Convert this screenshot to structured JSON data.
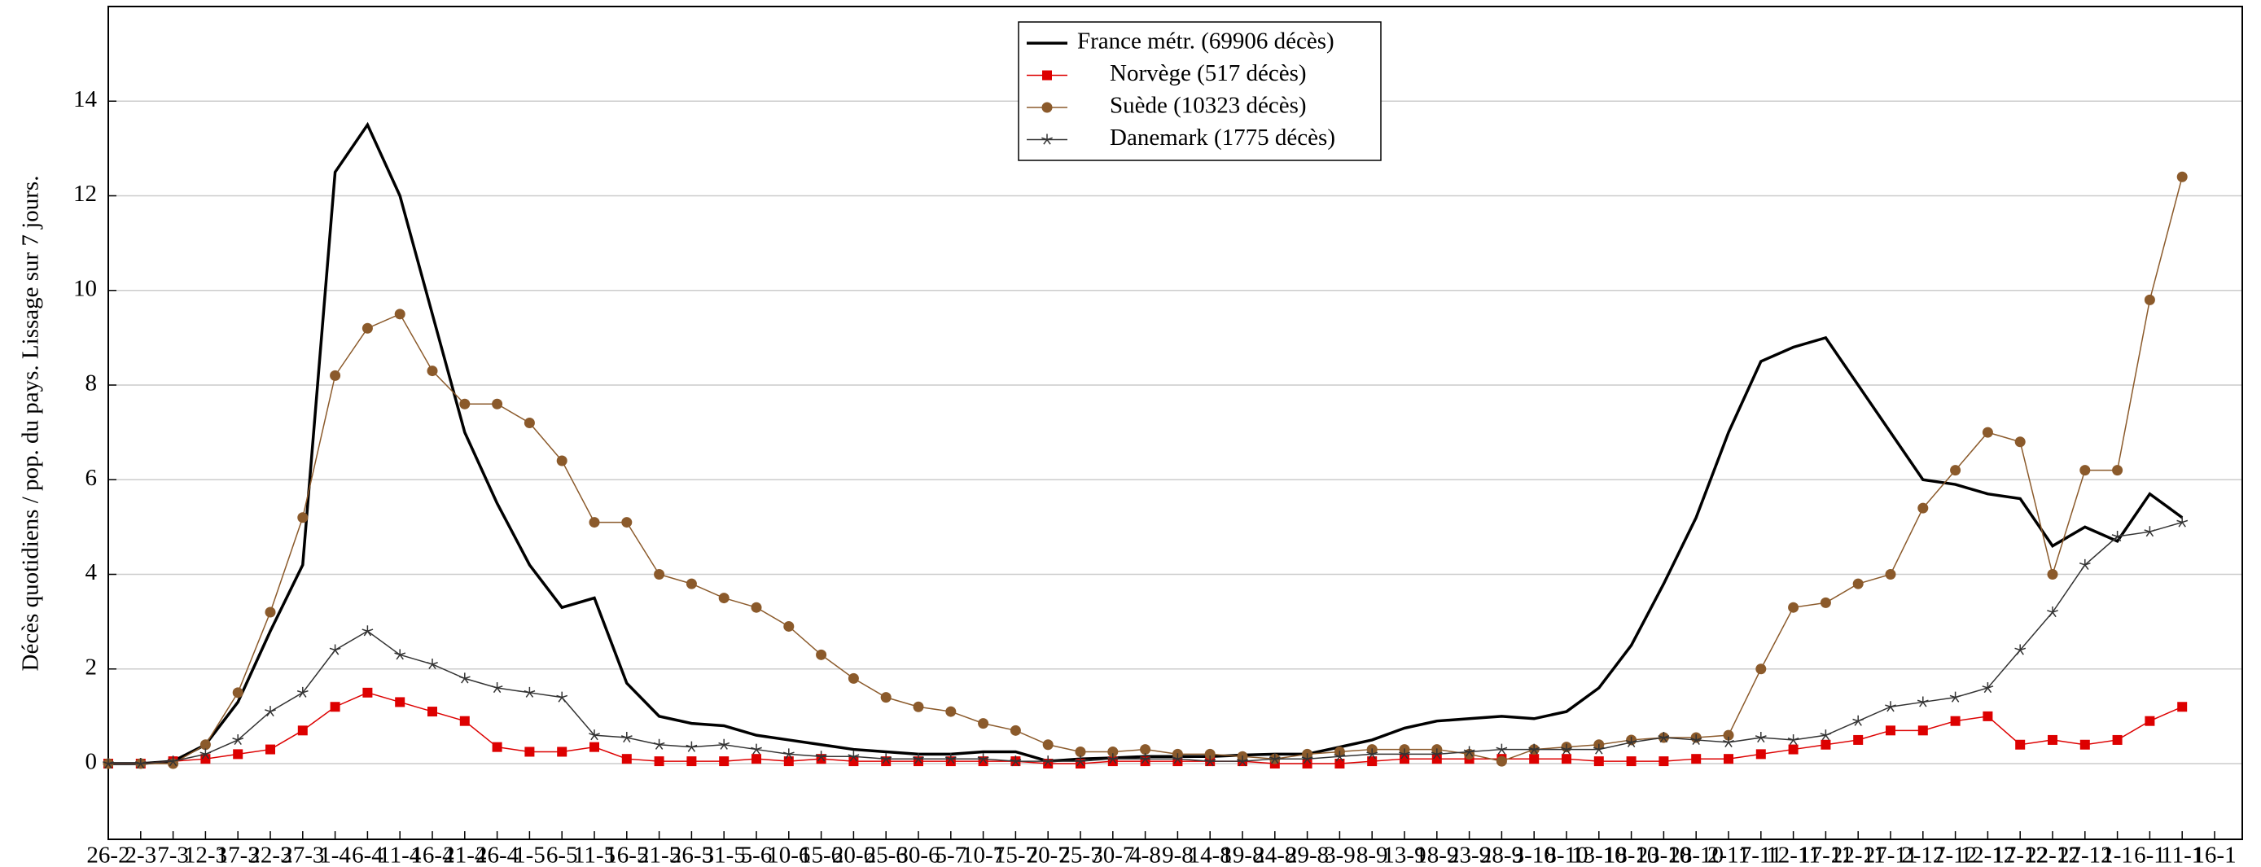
{
  "chart_data": {
    "type": "line",
    "ylabel": "Décès quotidiens / pop. du pays. Lissage sur 7 jours.",
    "categories": [
      "26-2",
      "2-3",
      "7-3",
      "12-3",
      "17-3",
      "22-3",
      "27-3",
      "1-4",
      "6-4",
      "11-4",
      "16-4",
      "21-4",
      "26-4",
      "1-5",
      "6-5",
      "11-5",
      "16-5",
      "21-5",
      "26-5",
      "31-5",
      "5-6",
      "10-6",
      "15-6",
      "20-6",
      "25-6",
      "30-6",
      "5-7",
      "10-7",
      "15-7",
      "20-7",
      "25-7",
      "30-7",
      "4-8",
      "9-8",
      "14-8",
      "19-8",
      "24-8",
      "29-8",
      "3-9",
      "8-9",
      "13-9",
      "18-9",
      "23-9",
      "28-9",
      "3-10",
      "8-10",
      "13-10",
      "18-10",
      "23-10",
      "28-10",
      "2-11",
      "7-11",
      "12-11",
      "17-11",
      "22-11",
      "27-11",
      "2-12",
      "7-12",
      "12-12",
      "17-12",
      "22-12",
      "27-12",
      "1-1",
      "6-1",
      "11-1",
      "16-1"
    ],
    "ylim": [
      -1.6,
      16
    ],
    "yticks": [
      0,
      2,
      4,
      6,
      8,
      10,
      12,
      14
    ],
    "grid": true,
    "legend": "top",
    "series": [
      {
        "name": "France métr. (69906 décès)",
        "color": "#000000",
        "marker": "none",
        "values": [
          0,
          0,
          0.05,
          0.4,
          1.3,
          2.8,
          4.2,
          12.5,
          13.5,
          12.0,
          9.5,
          7.0,
          5.5,
          4.2,
          3.3,
          3.5,
          1.7,
          1.0,
          0.85,
          0.8,
          0.6,
          0.5,
          0.4,
          0.3,
          0.25,
          0.2,
          0.2,
          0.25,
          0.25,
          0.05,
          0.1,
          0.12,
          0.15,
          0.15,
          0.15,
          0.18,
          0.2,
          0.2,
          0.35,
          0.5,
          0.75,
          0.9,
          0.95,
          1.0,
          0.95,
          1.1,
          1.6,
          2.5,
          3.8,
          5.2,
          7.0,
          8.5,
          8.8,
          9.0,
          8.0,
          7.0,
          6.0,
          5.9,
          5.7,
          5.6,
          4.6,
          5.0,
          4.7,
          5.7,
          5.2,
          null
        ]
      },
      {
        "name": "Norvège (517 décès)",
        "color": "#dd0000",
        "marker": "square",
        "values": [
          0,
          0,
          0.05,
          0.1,
          0.2,
          0.3,
          0.7,
          1.2,
          1.5,
          1.3,
          1.1,
          0.9,
          0.35,
          0.25,
          0.25,
          0.35,
          0.1,
          0.05,
          0.05,
          0.05,
          0.1,
          0.05,
          0.1,
          0.05,
          0.05,
          0.05,
          0.05,
          0.05,
          0.05,
          0,
          0,
          0.05,
          0.05,
          0.05,
          0.05,
          0.05,
          0,
          0,
          0,
          0.05,
          0.1,
          0.1,
          0.1,
          0.1,
          0.1,
          0.1,
          0.05,
          0.05,
          0.05,
          0.1,
          0.1,
          0.2,
          0.3,
          0.4,
          0.5,
          0.7,
          0.7,
          0.9,
          1.0,
          0.4,
          0.5,
          0.4,
          0.5,
          0.9,
          1.2,
          null
        ]
      },
      {
        "name": "Suède (10323 décès)",
        "color": "#8b5a2b",
        "marker": "circle",
        "values": [
          0,
          0,
          0,
          0.4,
          1.5,
          3.2,
          5.2,
          8.2,
          9.2,
          9.5,
          8.3,
          7.6,
          7.6,
          7.2,
          6.4,
          5.1,
          5.1,
          4.0,
          3.8,
          3.5,
          3.3,
          2.9,
          2.3,
          1.8,
          1.4,
          1.2,
          1.1,
          0.85,
          0.7,
          0.4,
          0.25,
          0.25,
          0.3,
          0.2,
          0.2,
          0.15,
          0.1,
          0.2,
          0.25,
          0.3,
          0.3,
          0.3,
          0.2,
          0.05,
          0.3,
          0.35,
          0.4,
          0.5,
          0.55,
          0.55,
          0.6,
          2.0,
          3.3,
          3.4,
          3.8,
          4.0,
          5.4,
          6.2,
          7.0,
          6.8,
          4.0,
          6.2,
          6.2,
          9.8,
          12.4,
          null
        ]
      },
      {
        "name": "Danemark (1775 décès)",
        "color": "#333333",
        "marker": "star",
        "values": [
          0,
          0,
          0.05,
          0.2,
          0.5,
          1.1,
          1.5,
          2.4,
          2.8,
          2.3,
          2.1,
          1.8,
          1.6,
          1.5,
          1.4,
          0.6,
          0.55,
          0.4,
          0.35,
          0.4,
          0.3,
          0.2,
          0.15,
          0.15,
          0.1,
          0.1,
          0.1,
          0.1,
          0.05,
          0.05,
          0.05,
          0.1,
          0.1,
          0.1,
          0.05,
          0.05,
          0.1,
          0.1,
          0.15,
          0.2,
          0.2,
          0.2,
          0.25,
          0.3,
          0.3,
          0.3,
          0.3,
          0.45,
          0.55,
          0.5,
          0.45,
          0.55,
          0.5,
          0.6,
          0.9,
          1.2,
          1.3,
          1.4,
          1.6,
          2.4,
          3.2,
          4.2,
          4.8,
          4.9,
          5.1,
          null
        ]
      }
    ]
  }
}
